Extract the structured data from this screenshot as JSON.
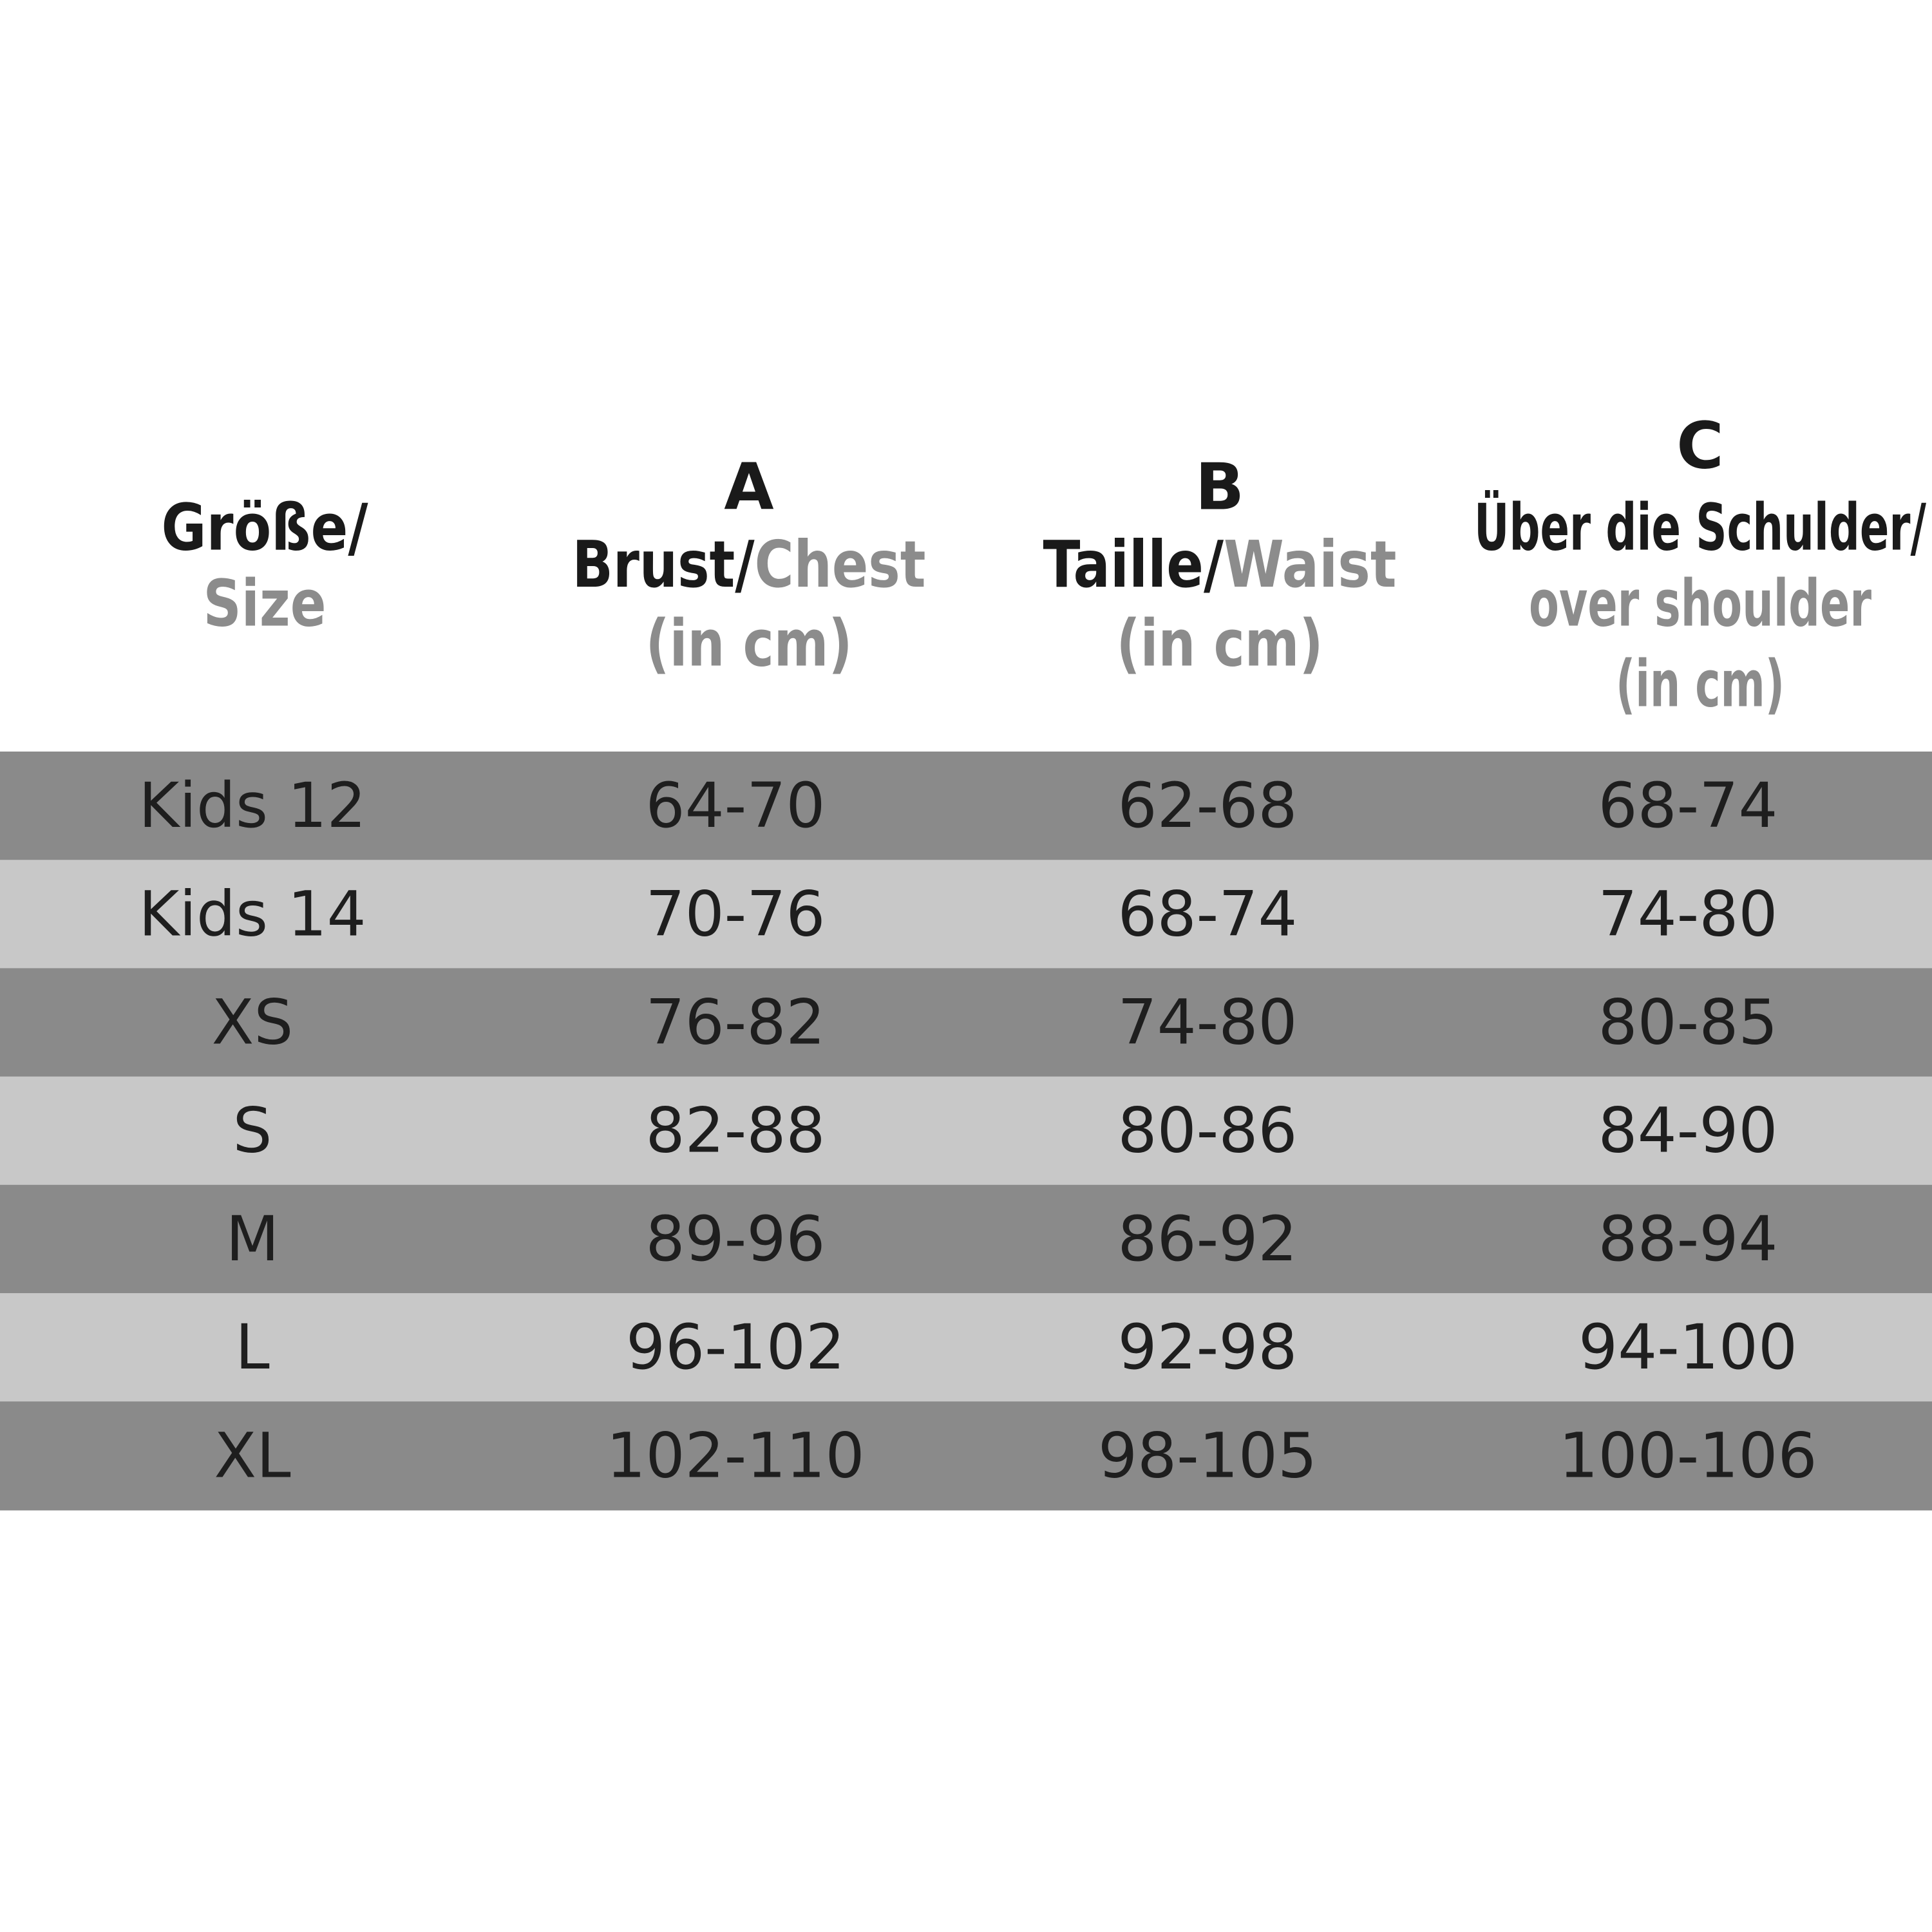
{
  "table": {
    "header": [
      {
        "title": "Größe/",
        "title_en": "Size"
      },
      {
        "letter": "A",
        "title": "Brust/",
        "title_en": "Chest",
        "unit": "(in cm)"
      },
      {
        "letter": "B",
        "title": "Taille/",
        "title_en": "Waist",
        "unit": "(in cm)"
      },
      {
        "letter": "C",
        "title": "Über die Schulder/",
        "title_en": "over shoulder",
        "unit": "(in cm)"
      }
    ],
    "rows": [
      [
        "Kids 12",
        "64-70",
        "62-68",
        "68-74"
      ],
      [
        "Kids 14",
        "70-76",
        "68-74",
        "74-80"
      ],
      [
        "XS",
        "76-82",
        "74-80",
        "80-85"
      ],
      [
        "S",
        "82-88",
        "80-86",
        "84-90"
      ],
      [
        "M",
        "89-96",
        "86-92",
        "88-94"
      ],
      [
        "L",
        "96-102",
        "92-98",
        "94-100"
      ],
      [
        "XL",
        "102-110",
        "98-105",
        "100-106"
      ]
    ]
  }
}
